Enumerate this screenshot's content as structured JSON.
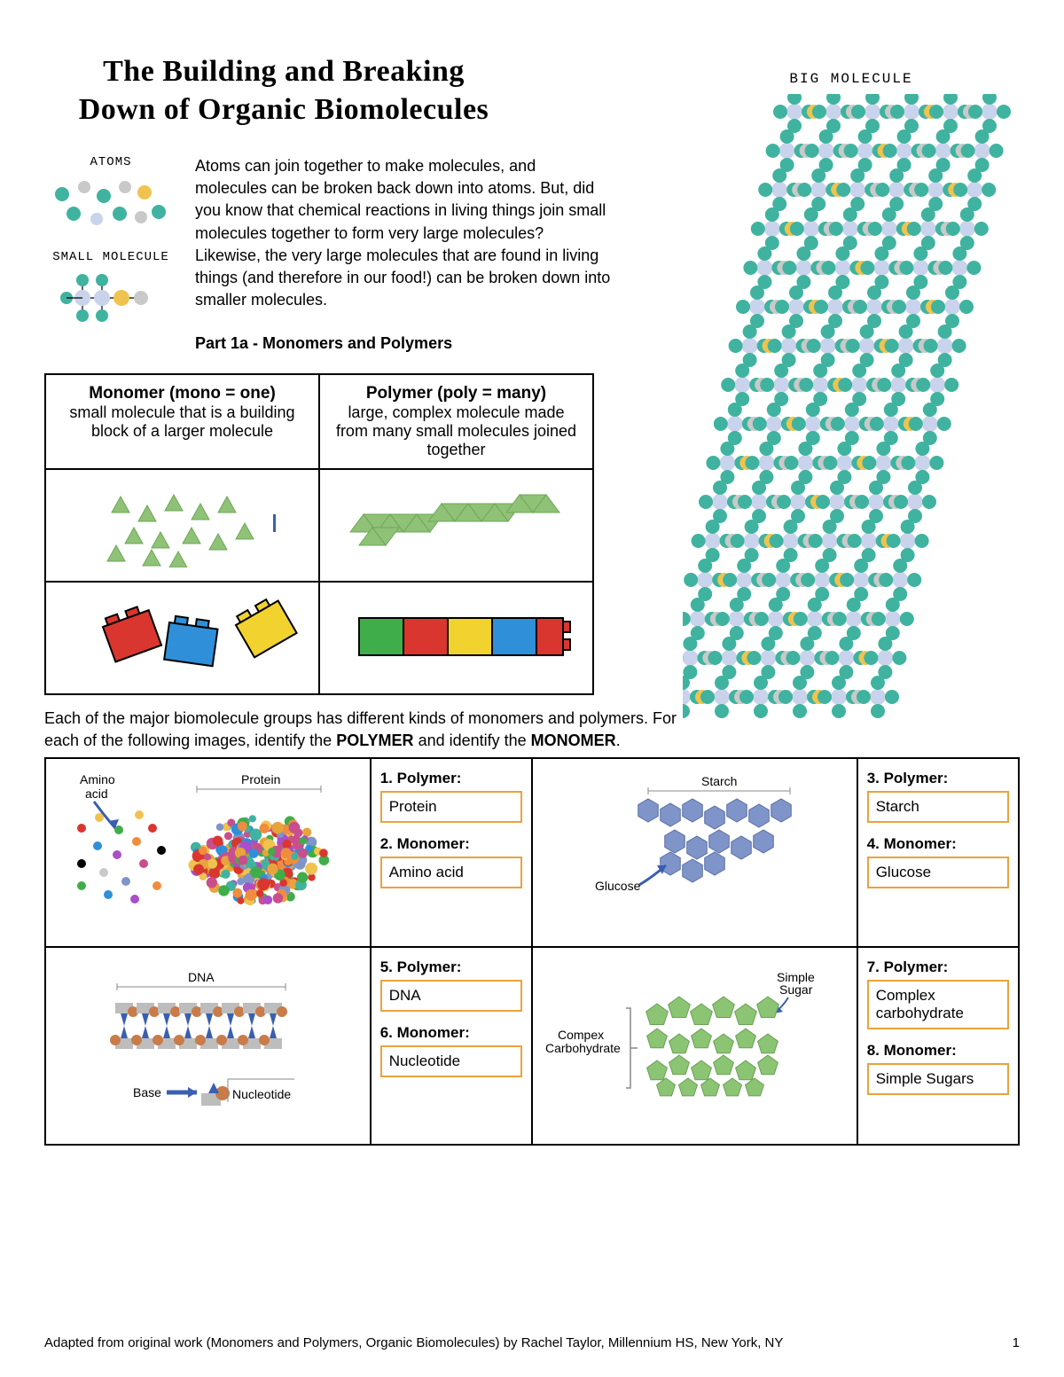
{
  "title_line1": "The Building and Breaking",
  "title_line2": "Down of Organic Biomolecules",
  "atoms_label": "ATOMS",
  "small_mol_label": "SMALL MOLECULE",
  "big_mol_label": "BIG MOLECULE",
  "intro": "Atoms can join together to make molecules, and molecules can be broken back down into atoms. But, did you know that chemical reactions in living things join small molecules together to form very large molecules? Likewise, the very large molecules that are found in living things (and therefore in our food!) can be broken down into smaller molecules.",
  "part1a": "Part 1a - Monomers and Polymers",
  "monomer_head": "Monomer (mono = one)",
  "monomer_desc": "small molecule that is a building block of a larger molecule",
  "polymer_head": "Polymer (poly = many)",
  "polymer_desc": "large, complex molecule made from many small molecules joined together",
  "instructions_a": "Each of the major biomolecule groups has different kinds of monomers and polymers. For each of the following images, identify the ",
  "instructions_b": "POLYMER",
  "instructions_c": " and identify the ",
  "instructions_d": "MONOMER",
  "instructions_e": ".",
  "diag": {
    "amino": "Amino acid",
    "protein": "Protein",
    "starch": "Starch",
    "glucose": "Glucose",
    "dna": "DNA",
    "base": "Base",
    "nucleotide": "Nucleotide",
    "complex_carb": "Compex Carbohydrate",
    "simple_sugar": "Simple Sugar"
  },
  "q": {
    "q1": "1.  Polymer:",
    "a1": "Protein",
    "q2": "2.  Monomer:",
    "a2": "Amino acid",
    "q3": "3.  Polymer:",
    "a3": "Starch",
    "q4": "4.  Monomer:",
    "a4": "Glucose",
    "q5": "5.  Polymer:",
    "a5": "DNA",
    "q6": "6.  Monomer:",
    "a6": "Nucleotide",
    "q7": "7.  Polymer:",
    "a7": "Complex carbohydrate",
    "q8": "8.  Monomer:",
    "a8": "Simple Sugars"
  },
  "footer": "Adapted from original work (Monomers and Polymers, Organic Biomolecules) by Rachel Taylor, Millennium HS, New York, NY",
  "page_num": "1",
  "colors": {
    "teal": "#3fb39f",
    "lightblue": "#c9d3ec",
    "yellow": "#f0c34e",
    "grey": "#c9c9c9",
    "green_tri": "#8fc276",
    "green_tri_dark": "#6da757",
    "lego_red": "#d9362f",
    "lego_blue": "#2f8fd9",
    "lego_yellow": "#f2d22e",
    "lego_green": "#3fae4a",
    "orange_box": "#e8a33d",
    "hex_blue": "#7f95c9",
    "pent_green": "#8bc573",
    "dna_blue": "#3a5fb0",
    "dna_orange": "#c97b4a",
    "dna_grey": "#bdbdbd"
  }
}
